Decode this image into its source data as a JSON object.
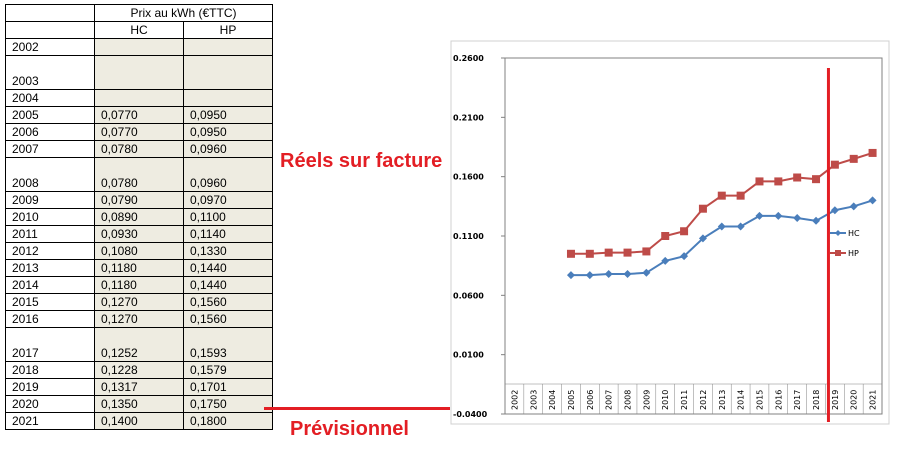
{
  "table": {
    "title": "Prix au kWh (€TTC)",
    "col_hc": "HC",
    "col_hp": "HP",
    "rows": [
      {
        "year": "2002",
        "hc": "",
        "hp": "",
        "tall": false
      },
      {
        "year": "2003",
        "hc": "",
        "hp": "",
        "tall": true
      },
      {
        "year": "2004",
        "hc": "",
        "hp": "",
        "tall": false
      },
      {
        "year": "2005",
        "hc": "0,0770",
        "hp": "0,0950",
        "tall": false
      },
      {
        "year": "2006",
        "hc": "0,0770",
        "hp": "0,0950",
        "tall": false
      },
      {
        "year": "2007",
        "hc": "0,0780",
        "hp": "0,0960",
        "tall": false
      },
      {
        "year": "2008",
        "hc": "0,0780",
        "hp": "0,0960",
        "tall": true
      },
      {
        "year": "2009",
        "hc": "0,0790",
        "hp": "0,0970",
        "tall": false
      },
      {
        "year": "2010",
        "hc": "0,0890",
        "hp": "0,1100",
        "tall": false
      },
      {
        "year": "2011",
        "hc": "0,0930",
        "hp": "0,1140",
        "tall": false
      },
      {
        "year": "2012",
        "hc": "0,1080",
        "hp": "0,1330",
        "tall": false
      },
      {
        "year": "2013",
        "hc": "0,1180",
        "hp": "0,1440",
        "tall": false
      },
      {
        "year": "2014",
        "hc": "0,1180",
        "hp": "0,1440",
        "tall": false
      },
      {
        "year": "2015",
        "hc": "0,1270",
        "hp": "0,1560",
        "tall": false
      },
      {
        "year": "2016",
        "hc": "0,1270",
        "hp": "0,1560",
        "tall": false
      },
      {
        "year": "2017",
        "hc": "0,1252",
        "hp": "0,1593",
        "tall": true
      },
      {
        "year": "2018",
        "hc": "0,1228",
        "hp": "0,1579",
        "tall": false
      },
      {
        "year": "2019",
        "hc": "0,1317",
        "hp": "0,1701",
        "tall": false
      },
      {
        "year": "2020",
        "hc": "0,1350",
        "hp": "0,1750",
        "tall": false
      },
      {
        "year": "2021",
        "hc": "0,1400",
        "hp": "0,1800",
        "tall": false
      }
    ]
  },
  "annotations": {
    "reels": "Réels sur facture",
    "previsionnel": "Prévisionnel"
  },
  "colors": {
    "hc": "#4a7ebb",
    "hp": "#be4b48",
    "marker_line": "#e31e24",
    "table_fill": "#eeece1"
  },
  "chart_data": {
    "type": "line",
    "categories": [
      "2002",
      "2003",
      "2004",
      "2005",
      "2006",
      "2007",
      "2008",
      "2009",
      "2010",
      "2011",
      "2012",
      "2013",
      "2014",
      "2015",
      "2016",
      "2017",
      "2018",
      "2019",
      "2020",
      "2021"
    ],
    "series": [
      {
        "name": "HC",
        "values": [
          null,
          null,
          null,
          0.077,
          0.077,
          0.078,
          0.078,
          0.079,
          0.089,
          0.093,
          0.108,
          0.118,
          0.118,
          0.127,
          0.127,
          0.1252,
          0.1228,
          0.1317,
          0.135,
          0.14
        ]
      },
      {
        "name": "HP",
        "values": [
          null,
          null,
          null,
          0.095,
          0.095,
          0.096,
          0.096,
          0.097,
          0.11,
          0.114,
          0.133,
          0.144,
          0.144,
          0.156,
          0.156,
          0.1593,
          0.1579,
          0.1701,
          0.175,
          0.18
        ]
      }
    ],
    "y_ticks": [
      "0.2600",
      "0.2100",
      "0.1600",
      "0.1100",
      "0.0600",
      "0.0100",
      "-0.0400"
    ],
    "ylim": [
      -0.04,
      0.26
    ],
    "vertical_marker_between": [
      "2018",
      "2019"
    ],
    "grid": false,
    "legend": "right"
  }
}
